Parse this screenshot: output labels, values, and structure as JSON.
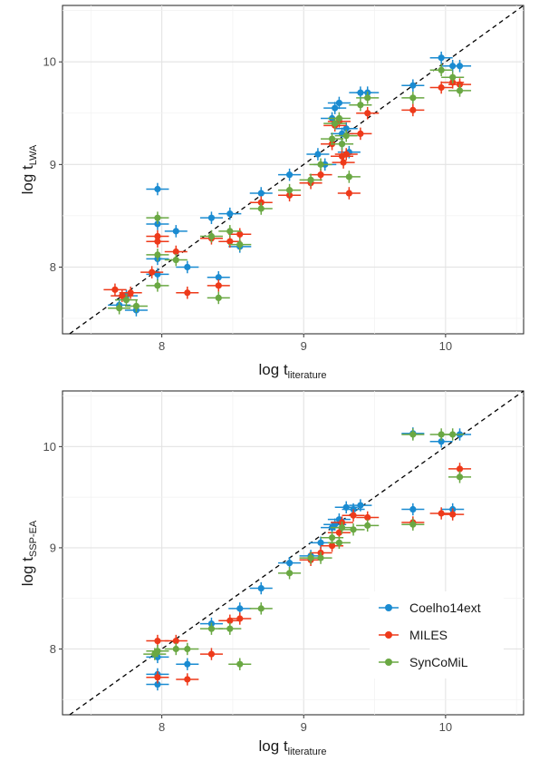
{
  "chart_data": [
    {
      "type": "scatter",
      "panel": "top",
      "xlabel": "log t",
      "xlabel_sub": "literature",
      "ylabel": "log t",
      "ylabel_sub": "LWA",
      "xlim": [
        7.3,
        10.55
      ],
      "ylim": [
        7.35,
        10.55
      ],
      "x_ticks": [
        8,
        9,
        10
      ],
      "x_tick_labels": [
        "8",
        "9",
        "10"
      ],
      "y_ticks": [
        8,
        9,
        10
      ],
      "y_tick_labels": [
        "8",
        "9",
        "10"
      ],
      "grid": true,
      "reference_line": "y = x (dashed)",
      "error_x": 0.08,
      "error_y": 0.06,
      "series": [
        {
          "name": "Coelho14ext",
          "color": "#1a8bd1",
          "points": [
            [
              7.7,
              7.63
            ],
            [
              7.75,
              7.72
            ],
            [
              7.82,
              7.58
            ],
            [
              7.97,
              7.93
            ],
            [
              7.97,
              8.08
            ],
            [
              7.97,
              8.42
            ],
            [
              7.97,
              8.76
            ],
            [
              8.1,
              8.35
            ],
            [
              8.18,
              8.0
            ],
            [
              8.35,
              8.48
            ],
            [
              8.4,
              7.9
            ],
            [
              8.48,
              8.52
            ],
            [
              8.55,
              8.2
            ],
            [
              8.7,
              8.72
            ],
            [
              8.9,
              8.9
            ],
            [
              9.1,
              9.1
            ],
            [
              9.15,
              9.0
            ],
            [
              9.2,
              9.45
            ],
            [
              9.22,
              9.55
            ],
            [
              9.25,
              9.6
            ],
            [
              9.27,
              9.3
            ],
            [
              9.27,
              9.2
            ],
            [
              9.3,
              9.35
            ],
            [
              9.32,
              9.12
            ],
            [
              9.4,
              9.7
            ],
            [
              9.45,
              9.7
            ],
            [
              9.77,
              9.77
            ],
            [
              9.97,
              10.04
            ],
            [
              10.05,
              9.96
            ],
            [
              10.1,
              9.96
            ]
          ]
        },
        {
          "name": "MILES",
          "color": "#ee3a1a",
          "points": [
            [
              7.67,
              7.78
            ],
            [
              7.72,
              7.72
            ],
            [
              7.78,
              7.75
            ],
            [
              7.93,
              7.95
            ],
            [
              7.97,
              8.25
            ],
            [
              7.97,
              8.3
            ],
            [
              8.1,
              8.15
            ],
            [
              8.18,
              7.75
            ],
            [
              8.35,
              8.28
            ],
            [
              8.4,
              7.82
            ],
            [
              8.48,
              8.25
            ],
            [
              8.55,
              8.32
            ],
            [
              8.7,
              8.63
            ],
            [
              8.9,
              8.7
            ],
            [
              9.05,
              8.82
            ],
            [
              9.12,
              8.9
            ],
            [
              9.2,
              9.2
            ],
            [
              9.22,
              9.38
            ],
            [
              9.25,
              9.42
            ],
            [
              9.27,
              9.08
            ],
            [
              9.28,
              9.02
            ],
            [
              9.3,
              9.1
            ],
            [
              9.32,
              8.72
            ],
            [
              9.4,
              9.3
            ],
            [
              9.45,
              9.5
            ],
            [
              9.77,
              9.53
            ],
            [
              9.97,
              9.75
            ],
            [
              10.05,
              9.8
            ],
            [
              10.1,
              9.78
            ]
          ]
        },
        {
          "name": "SynCoMiL",
          "color": "#6aa843",
          "points": [
            [
              7.7,
              7.6
            ],
            [
              7.75,
              7.68
            ],
            [
              7.82,
              7.62
            ],
            [
              7.97,
              7.82
            ],
            [
              7.97,
              8.12
            ],
            [
              7.97,
              8.48
            ],
            [
              8.1,
              8.07
            ],
            [
              8.35,
              8.3
            ],
            [
              8.4,
              7.7
            ],
            [
              8.48,
              8.35
            ],
            [
              8.55,
              8.22
            ],
            [
              8.7,
              8.57
            ],
            [
              8.9,
              8.75
            ],
            [
              9.05,
              8.85
            ],
            [
              9.12,
              9.0
            ],
            [
              9.2,
              9.25
            ],
            [
              9.22,
              9.4
            ],
            [
              9.25,
              9.45
            ],
            [
              9.27,
              9.2
            ],
            [
              9.3,
              9.28
            ],
            [
              9.32,
              8.88
            ],
            [
              9.4,
              9.58
            ],
            [
              9.45,
              9.65
            ],
            [
              9.77,
              9.65
            ],
            [
              9.97,
              9.92
            ],
            [
              10.05,
              9.85
            ],
            [
              10.1,
              9.72
            ]
          ]
        }
      ]
    },
    {
      "type": "scatter",
      "panel": "bottom",
      "xlabel": "log t",
      "xlabel_sub": "literature",
      "ylabel": "log t",
      "ylabel_sub": "SSP-EA",
      "xlim": [
        7.3,
        10.55
      ],
      "ylim": [
        7.35,
        10.55
      ],
      "x_ticks": [
        8,
        9,
        10
      ],
      "x_tick_labels": [
        "8",
        "9",
        "10"
      ],
      "y_ticks": [
        8,
        9,
        10
      ],
      "y_tick_labels": [
        "8",
        "9",
        "10"
      ],
      "grid": true,
      "reference_line": "y = x (dashed)",
      "legend_position": "bottom-right",
      "error_x": 0.08,
      "error_y": 0.06,
      "series": [
        {
          "name": "Coelho14ext",
          "color": "#1a8bd1",
          "points": [
            [
              7.97,
              7.75
            ],
            [
              7.97,
              7.65
            ],
            [
              7.97,
              7.92
            ],
            [
              8.18,
              7.85
            ],
            [
              8.35,
              8.25
            ],
            [
              8.55,
              8.4
            ],
            [
              8.7,
              8.6
            ],
            [
              8.9,
              8.85
            ],
            [
              9.05,
              8.92
            ],
            [
              9.12,
              9.05
            ],
            [
              9.2,
              9.2
            ],
            [
              9.22,
              9.23
            ],
            [
              9.25,
              9.28
            ],
            [
              9.3,
              9.4
            ],
            [
              9.35,
              9.38
            ],
            [
              9.4,
              9.42
            ],
            [
              9.77,
              9.38
            ],
            [
              9.77,
              10.13
            ],
            [
              9.97,
              10.05
            ],
            [
              10.05,
              9.38
            ],
            [
              10.1,
              10.12
            ]
          ]
        },
        {
          "name": "MILES",
          "color": "#ee3a1a",
          "points": [
            [
              7.97,
              8.08
            ],
            [
              7.97,
              7.72
            ],
            [
              8.1,
              8.08
            ],
            [
              8.18,
              7.7
            ],
            [
              8.35,
              7.95
            ],
            [
              8.48,
              8.28
            ],
            [
              8.55,
              8.3
            ],
            [
              9.05,
              8.88
            ],
            [
              9.12,
              8.95
            ],
            [
              9.2,
              9.02
            ],
            [
              9.25,
              9.15
            ],
            [
              9.27,
              9.25
            ],
            [
              9.35,
              9.32
            ],
            [
              9.45,
              9.3
            ],
            [
              9.77,
              9.25
            ],
            [
              9.97,
              9.34
            ],
            [
              10.05,
              9.33
            ],
            [
              10.1,
              9.78
            ]
          ]
        },
        {
          "name": "SynCoMiL",
          "color": "#6aa843",
          "points": [
            [
              7.95,
              7.95
            ],
            [
              7.97,
              7.98
            ],
            [
              8.1,
              8.0
            ],
            [
              8.18,
              8.0
            ],
            [
              8.35,
              8.2
            ],
            [
              8.48,
              8.2
            ],
            [
              8.55,
              7.85
            ],
            [
              8.7,
              8.4
            ],
            [
              8.9,
              8.75
            ],
            [
              9.05,
              8.9
            ],
            [
              9.12,
              8.9
            ],
            [
              9.2,
              9.1
            ],
            [
              9.25,
              9.05
            ],
            [
              9.27,
              9.2
            ],
            [
              9.35,
              9.18
            ],
            [
              9.45,
              9.22
            ],
            [
              9.77,
              9.23
            ],
            [
              9.77,
              10.12
            ],
            [
              9.97,
              10.12
            ],
            [
              10.05,
              10.12
            ],
            [
              10.1,
              9.7
            ]
          ]
        }
      ]
    }
  ]
}
